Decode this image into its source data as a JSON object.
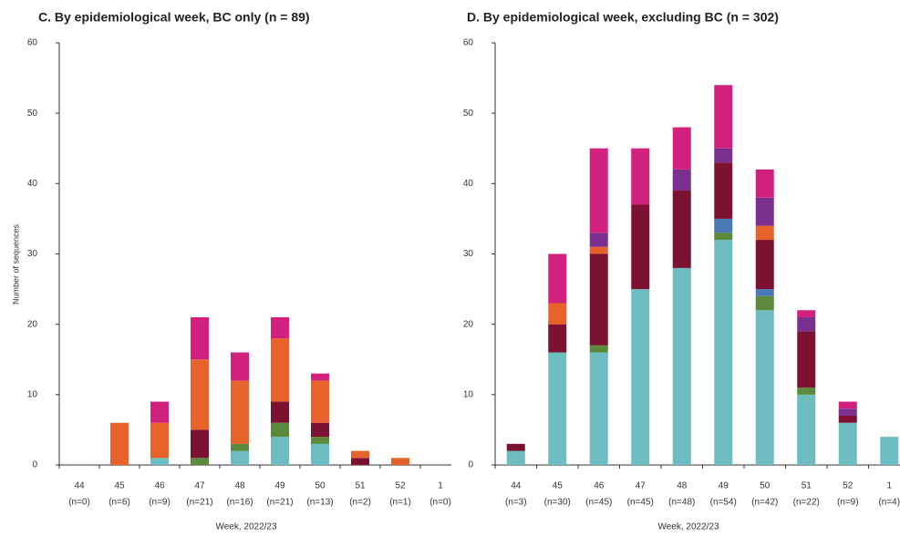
{
  "chart_data": [
    {
      "type": "bar",
      "stacked": true,
      "title": "C. By epidemiological week, BC only (n = 89)",
      "y_label": "Number of sequences",
      "x_label": "Week, 2022/23",
      "categories": [
        "44",
        "45",
        "46",
        "47",
        "48",
        "49",
        "50",
        "51",
        "52",
        "1"
      ],
      "category_counts": [
        "(n=0)",
        "(n=6)",
        "(n=9)",
        "(n=21)",
        "(n=16)",
        "(n=21)",
        "(n=13)",
        "(n=2)",
        "(n=1)",
        "(n=0)"
      ],
      "ylim": [
        0,
        60
      ],
      "yticks": [
        0,
        10,
        20,
        30,
        40,
        50,
        60
      ],
      "series": [
        {
          "color": "#6cbcc0",
          "values": [
            0,
            0,
            1,
            0,
            2,
            4,
            3,
            0,
            0,
            0
          ]
        },
        {
          "color": "#5b8a3c",
          "values": [
            0,
            0,
            0,
            1,
            1,
            2,
            1,
            0,
            0,
            0
          ]
        },
        {
          "color": "#4b79b6",
          "values": [
            0,
            0,
            0,
            0,
            0,
            0,
            0,
            0,
            0,
            0
          ]
        },
        {
          "color": "#7c1131",
          "values": [
            0,
            0,
            0,
            4,
            0,
            3,
            2,
            1,
            0,
            0
          ]
        },
        {
          "color": "#e8622b",
          "values": [
            0,
            6,
            5,
            10,
            9,
            9,
            6,
            1,
            1,
            0
          ]
        },
        {
          "color": "#7b2f8f",
          "values": [
            0,
            0,
            0,
            0,
            0,
            0,
            0,
            0,
            0,
            0
          ]
        },
        {
          "color": "#d2207f",
          "values": [
            0,
            0,
            3,
            6,
            4,
            3,
            1,
            0,
            0,
            0
          ]
        }
      ]
    },
    {
      "type": "bar",
      "stacked": true,
      "title": "D. By epidemiological week, excluding BC (n = 302)",
      "x_label": "Week, 2022/23",
      "categories": [
        "44",
        "45",
        "46",
        "47",
        "48",
        "49",
        "50",
        "51",
        "52",
        "1"
      ],
      "category_counts": [
        "(n=3)",
        "(n=30)",
        "(n=45)",
        "(n=45)",
        "(n=48)",
        "(n=54)",
        "(n=42)",
        "(n=22)",
        "(n=9)",
        "(n=4)"
      ],
      "ylim": [
        0,
        60
      ],
      "yticks": [
        0,
        10,
        20,
        30,
        40,
        50,
        60
      ],
      "series": [
        {
          "color": "#6cbcc0",
          "values": [
            2,
            16,
            16,
            25,
            28,
            32,
            22,
            10,
            6,
            4
          ]
        },
        {
          "color": "#5b8a3c",
          "values": [
            0,
            0,
            1,
            0,
            0,
            1,
            2,
            1,
            0,
            0
          ]
        },
        {
          "color": "#4b79b6",
          "values": [
            0,
            0,
            0,
            0,
            0,
            2,
            1,
            0,
            0,
            0
          ]
        },
        {
          "color": "#7c1131",
          "values": [
            1,
            4,
            13,
            12,
            11,
            8,
            7,
            8,
            1,
            0
          ]
        },
        {
          "color": "#e8622b",
          "values": [
            0,
            3,
            1,
            0,
            0,
            0,
            2,
            0,
            0,
            0
          ]
        },
        {
          "color": "#7b2f8f",
          "values": [
            0,
            0,
            2,
            0,
            3,
            2,
            4,
            2,
            1,
            0
          ]
        },
        {
          "color": "#d2207f",
          "values": [
            0,
            7,
            12,
            8,
            6,
            9,
            4,
            1,
            1,
            0
          ]
        }
      ]
    }
  ]
}
